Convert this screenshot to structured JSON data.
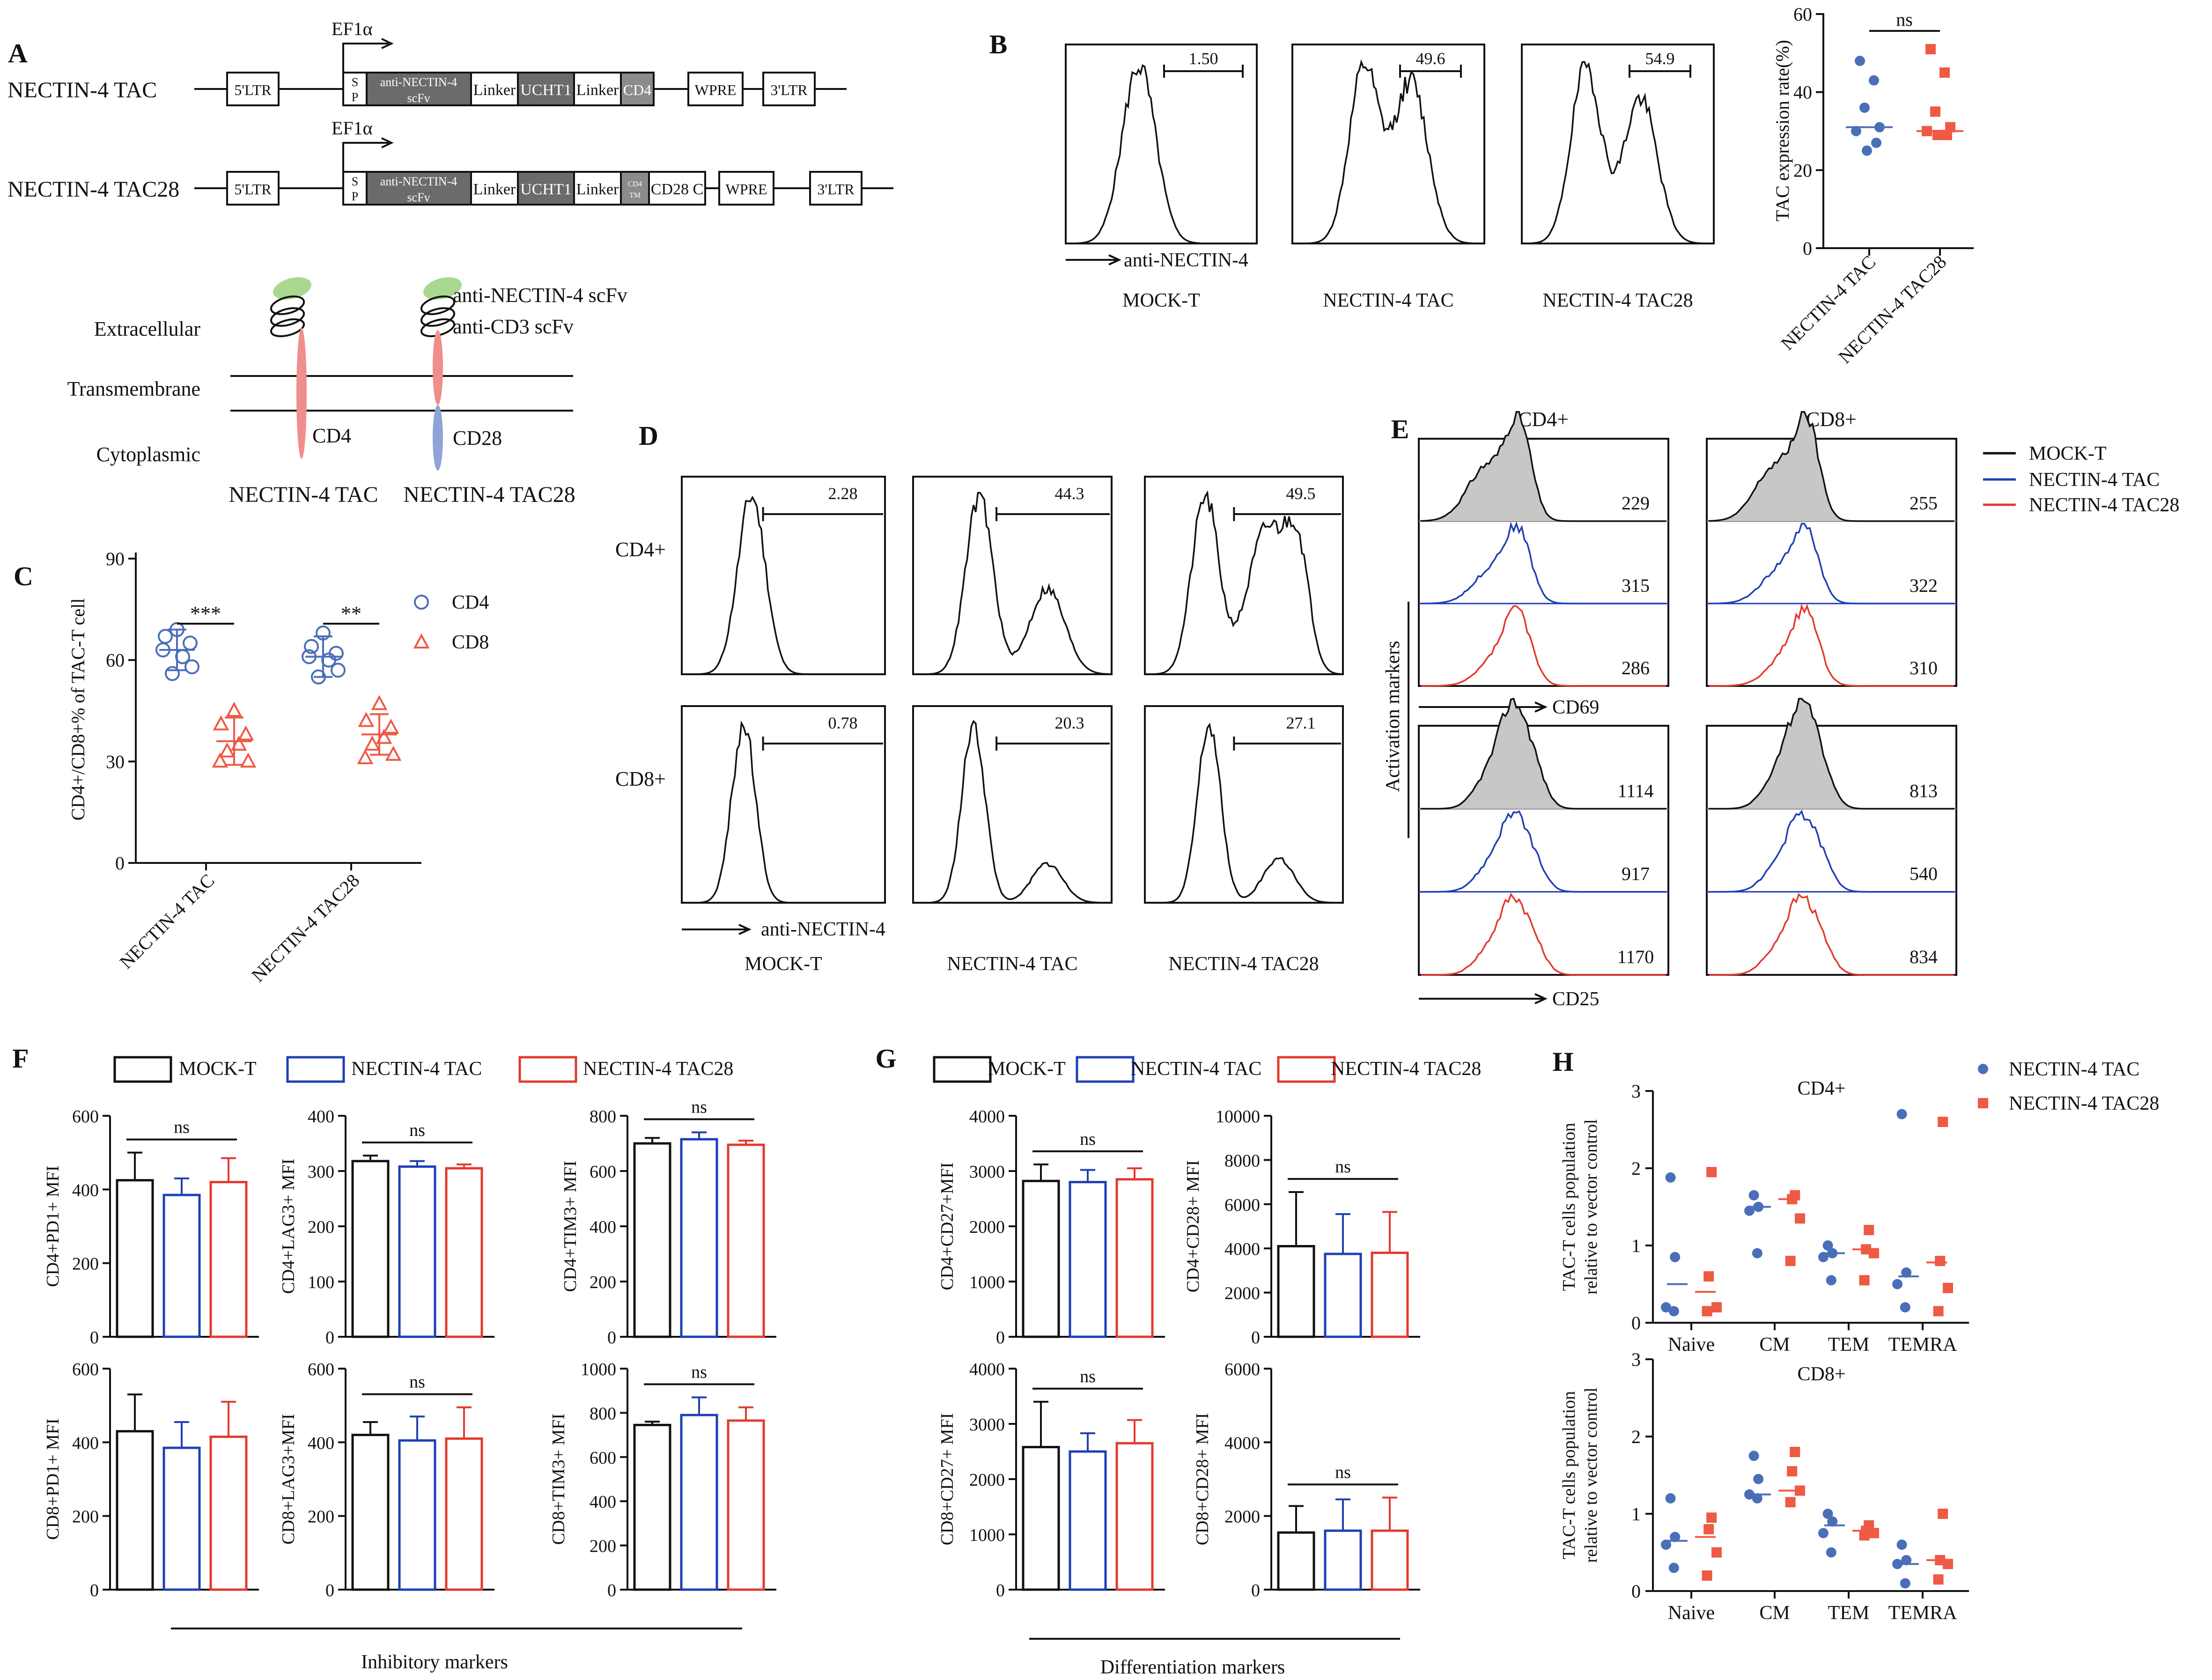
{
  "colors": {
    "black": "#111111",
    "blue": "#1f3fb4",
    "red": "#e23a2e",
    "dot_blue": "#4a6fb8",
    "dot_red": "#ee5a44",
    "gray_fill": "#c7c7c7",
    "cd4_pink": "#f08e8e",
    "cd28_blue": "#8fa4d6",
    "scfv_green": "#a9d890"
  },
  "panelA": {
    "letter": "A",
    "constructs": [
      {
        "name": "NECTIN-4 TAC",
        "promoter": "EF1α",
        "ltr5": "5'LTR",
        "sp_s": "S",
        "sp_p": "P",
        "scfv1": "anti-NECTIN-4",
        "scfv2": "scFv",
        "linker1": "Linker",
        "ucht1": "UCHT1",
        "linker2": "Linker",
        "cd4": "CD4",
        "wpre": "WPRE",
        "ltr3": "3'LTR"
      },
      {
        "name": "NECTIN-4 TAC28",
        "promoter": "EF1α",
        "ltr5": "5'LTR",
        "sp_s": "S",
        "sp_p": "P",
        "scfv1": "anti-NECTIN-4",
        "scfv2": "scFv",
        "linker1": "Linker",
        "ucht1": "UCHT1",
        "linker2": "Linker",
        "cd4tm1": "CD4",
        "cd4tm2": "TM",
        "cd28c": "CD28 C",
        "wpre": "WPRE",
        "ltr3": "3'LTR"
      }
    ],
    "schematic": {
      "extracellular": "Extracellular",
      "transmembrane": "Transmembrane",
      "cytoplasmic": "Cytoplasmic",
      "scfv_label": "anti-NECTIN-4 scFv",
      "cd3_label": "anti-CD3 scFv",
      "cd4": "CD4",
      "cd28": "CD28",
      "name1": "NECTIN-4 TAC",
      "name2": "NECTIN-4 TAC28"
    }
  },
  "panelB": {
    "letter": "B",
    "histograms": [
      {
        "label": "MOCK-T",
        "gate": "1.50"
      },
      {
        "label": "NECTIN-4 TAC",
        "gate": "49.6"
      },
      {
        "label": "NECTIN-4 TAC28",
        "gate": "54.9"
      }
    ],
    "axis": "anti-NECTIN-4",
    "chart_data": {
      "type": "scatter",
      "ylabel": "TAC expression rate(%)",
      "ylim": [
        0,
        60
      ],
      "yticks": [
        "0",
        "20",
        "40",
        "60"
      ],
      "categories": [
        "NECTIN-4 TAC",
        "NECTIN-4 TAC28"
      ],
      "sig": "ns",
      "series": [
        {
          "name": "NECTIN-4 TAC",
          "values": [
            48,
            43,
            36,
            31,
            30,
            27,
            25
          ],
          "median": 31
        },
        {
          "name": "NECTIN-4 TAC28",
          "values": [
            51,
            45,
            35,
            31,
            30,
            29,
            29
          ],
          "median": 30
        }
      ]
    }
  },
  "panelC": {
    "letter": "C",
    "chart_data": {
      "type": "scatter",
      "ylabel": "CD4+/CD8+% of TAC-T cell",
      "ylim": [
        0,
        90
      ],
      "yticks": [
        "0",
        "30",
        "60",
        "90"
      ],
      "categories": [
        "NECTIN-4 TAC",
        "NECTIN-4 TAC28"
      ],
      "legend": [
        "CD4",
        "CD8"
      ],
      "sig": [
        "***",
        "**"
      ],
      "series": [
        {
          "name": "CD4",
          "groups": [
            [
              69,
              67,
              65,
              63,
              61,
              58,
              56
            ],
            [
              68,
              64,
              62,
              61,
              60,
              57,
              55
            ]
          ],
          "mean": [
            63,
            61
          ],
          "sd": [
            6,
            6
          ]
        },
        {
          "name": "CD8",
          "groups": [
            [
              45,
              41,
              38,
              35,
              33,
              30,
              30
            ],
            [
              47,
              42,
              40,
              37,
              35,
              32,
              31
            ]
          ],
          "mean": [
            36,
            38
          ],
          "sd": [
            7,
            6
          ]
        }
      ]
    }
  },
  "panelD": {
    "letter": "D",
    "rows": [
      "CD4+",
      "CD8+"
    ],
    "cols": [
      "MOCK-T",
      "NECTIN-4 TAC",
      "NECTIN-4 TAC28"
    ],
    "gates": [
      [
        "2.28",
        "44.3",
        "49.5"
      ],
      [
        "0.78",
        "20.3",
        "27.1"
      ]
    ],
    "axis": "anti-NECTIN-4"
  },
  "panelE": {
    "letter": "E",
    "cols": [
      "CD4+",
      "CD8+"
    ],
    "ylabel": "Activation markers",
    "legend": [
      "MOCK-T",
      "NECTIN-4 TAC",
      "NECTIN-4 TAC28"
    ],
    "cd69": {
      "axis": "CD69",
      "cd4": [
        "229",
        "315",
        "286"
      ],
      "cd8": [
        "255",
        "322",
        "310"
      ]
    },
    "cd25": {
      "axis": "CD25",
      "cd4": [
        "1114",
        "917",
        "1170"
      ],
      "cd8": [
        "813",
        "540",
        "834"
      ]
    }
  },
  "panelF": {
    "letter": "F",
    "legend": [
      "MOCK-T",
      "NECTIN-4 TAC",
      "NECTIN-4 TAC28"
    ],
    "footer": "Inhibitory markers",
    "chart_data": [
      {
        "type": "bar",
        "ylabel": "CD4+PD1+ MFI",
        "ylim": [
          0,
          600
        ],
        "yticks": [
          "0",
          "200",
          "400",
          "600"
        ],
        "values": [
          425,
          385,
          420
        ],
        "errors": [
          75,
          45,
          65
        ],
        "sig": "ns"
      },
      {
        "type": "bar",
        "ylabel": "CD4+LAG3+ MFI",
        "ylim": [
          0,
          400
        ],
        "yticks": [
          "0",
          "100",
          "200",
          "300",
          "400"
        ],
        "values": [
          318,
          308,
          305
        ],
        "errors": [
          10,
          10,
          7
        ],
        "sig": "ns"
      },
      {
        "type": "bar",
        "ylabel": "CD4+TIM3+ MFI",
        "ylim": [
          0,
          800
        ],
        "yticks": [
          "0",
          "200",
          "400",
          "600",
          "800"
        ],
        "values": [
          700,
          715,
          695
        ],
        "errors": [
          20,
          25,
          15
        ],
        "sig": "ns"
      },
      {
        "type": "bar",
        "ylabel": "CD8+PD1+ MFI",
        "ylim": [
          0,
          600
        ],
        "yticks": [
          "0",
          "200",
          "400",
          "600"
        ],
        "values": [
          430,
          385,
          415
        ],
        "errors": [
          100,
          70,
          95
        ],
        "sig": ""
      },
      {
        "type": "bar",
        "ylabel": "CD8+LAG3+MFI",
        "ylim": [
          0,
          600
        ],
        "yticks": [
          "0",
          "200",
          "400",
          "600"
        ],
        "values": [
          420,
          405,
          410
        ],
        "errors": [
          35,
          65,
          85
        ],
        "sig": "ns"
      },
      {
        "type": "bar",
        "ylabel": "CD8+TIM3+ MFI",
        "ylim": [
          0,
          1000
        ],
        "yticks": [
          "0",
          "200",
          "400",
          "600",
          "800",
          "1000"
        ],
        "values": [
          745,
          790,
          765
        ],
        "errors": [
          15,
          80,
          60
        ],
        "sig": "ns"
      }
    ]
  },
  "panelG": {
    "letter": "G",
    "legend": [
      "MOCK-T",
      "NECTIN-4 TAC",
      "NECTIN-4 TAC28"
    ],
    "footer": "Differentiation markers",
    "chart_data": [
      {
        "type": "bar",
        "ylabel": "CD4+CD27+MFI",
        "ylim": [
          0,
          4000
        ],
        "yticks": [
          "0",
          "1000",
          "2000",
          "3000",
          "4000"
        ],
        "values": [
          2820,
          2800,
          2850
        ],
        "errors": [
          300,
          220,
          200
        ],
        "sig": "ns"
      },
      {
        "type": "bar",
        "ylabel": "CD4+CD28+ MFI",
        "ylim": [
          0,
          10000
        ],
        "yticks": [
          "0",
          "2000",
          "4000",
          "6000",
          "8000",
          "10000"
        ],
        "values": [
          4100,
          3750,
          3800
        ],
        "errors": [
          2450,
          1800,
          1850
        ],
        "sig": "ns"
      },
      {
        "type": "bar",
        "ylabel": "CD8+CD27+ MFI",
        "ylim": [
          0,
          4000
        ],
        "yticks": [
          "0",
          "1000",
          "2000",
          "3000",
          "4000"
        ],
        "values": [
          2580,
          2500,
          2650
        ],
        "errors": [
          820,
          330,
          420
        ],
        "sig": "ns"
      },
      {
        "type": "bar",
        "ylabel": "CD8+CD28+ MFI",
        "ylim": [
          0,
          6000
        ],
        "yticks": [
          "0",
          "2000",
          "4000",
          "6000"
        ],
        "values": [
          1550,
          1600,
          1600
        ],
        "errors": [
          720,
          850,
          900
        ],
        "sig": "ns"
      }
    ]
  },
  "panelH": {
    "letter": "H",
    "legend": [
      "NECTIN-4 TAC",
      "NECTIN-4 TAC28"
    ],
    "ylabel1": "TAC-T cells population",
    "ylabel2": "relative to vector control",
    "chart_data": [
      {
        "type": "scatter",
        "title": "CD4+",
        "categories": [
          "Naive",
          "CM",
          "TEM",
          "TEMRA"
        ],
        "ylim": [
          0,
          3
        ],
        "yticks": [
          "0",
          "1",
          "2",
          "3"
        ],
        "series": [
          {
            "name": "NECTIN-4 TAC",
            "groups": [
              [
                1.88,
                0.85,
                0.2,
                0.15
              ],
              [
                1.65,
                1.5,
                1.45,
                0.9
              ],
              [
                1.0,
                0.9,
                0.85,
                0.55
              ],
              [
                2.7,
                0.65,
                0.5,
                0.2
              ]
            ],
            "median": [
              0.5,
              1.5,
              0.9,
              0.6
            ]
          },
          {
            "name": "NECTIN-4 TAC28",
            "groups": [
              [
                1.95,
                0.6,
                0.2,
                0.15
              ],
              [
                1.65,
                1.6,
                1.35,
                0.8
              ],
              [
                1.2,
                0.95,
                0.9,
                0.55
              ],
              [
                2.6,
                0.8,
                0.45,
                0.15
              ]
            ],
            "median": [
              0.4,
              1.6,
              0.95,
              0.78
            ]
          }
        ]
      },
      {
        "type": "scatter",
        "title": "CD8+",
        "categories": [
          "Naive",
          "CM",
          "TEM",
          "TEMRA"
        ],
        "ylim": [
          0,
          3
        ],
        "yticks": [
          "0",
          "1",
          "2",
          "3"
        ],
        "series": [
          {
            "name": "NECTIN-4 TAC",
            "groups": [
              [
                1.2,
                0.7,
                0.6,
                0.3
              ],
              [
                1.75,
                1.45,
                1.25,
                1.2
              ],
              [
                1.0,
                0.9,
                0.75,
                0.5
              ],
              [
                0.6,
                0.4,
                0.35,
                0.1
              ]
            ],
            "median": [
              0.65,
              1.25,
              0.85,
              0.35
            ]
          },
          {
            "name": "NECTIN-4 TAC28",
            "groups": [
              [
                0.95,
                0.8,
                0.5,
                0.2
              ],
              [
                1.8,
                1.55,
                1.3,
                1.15
              ],
              [
                0.85,
                0.78,
                0.75,
                0.72
              ],
              [
                1.0,
                0.4,
                0.35,
                0.15
              ]
            ],
            "median": [
              0.7,
              1.3,
              0.78,
              0.4
            ]
          }
        ]
      }
    ]
  }
}
